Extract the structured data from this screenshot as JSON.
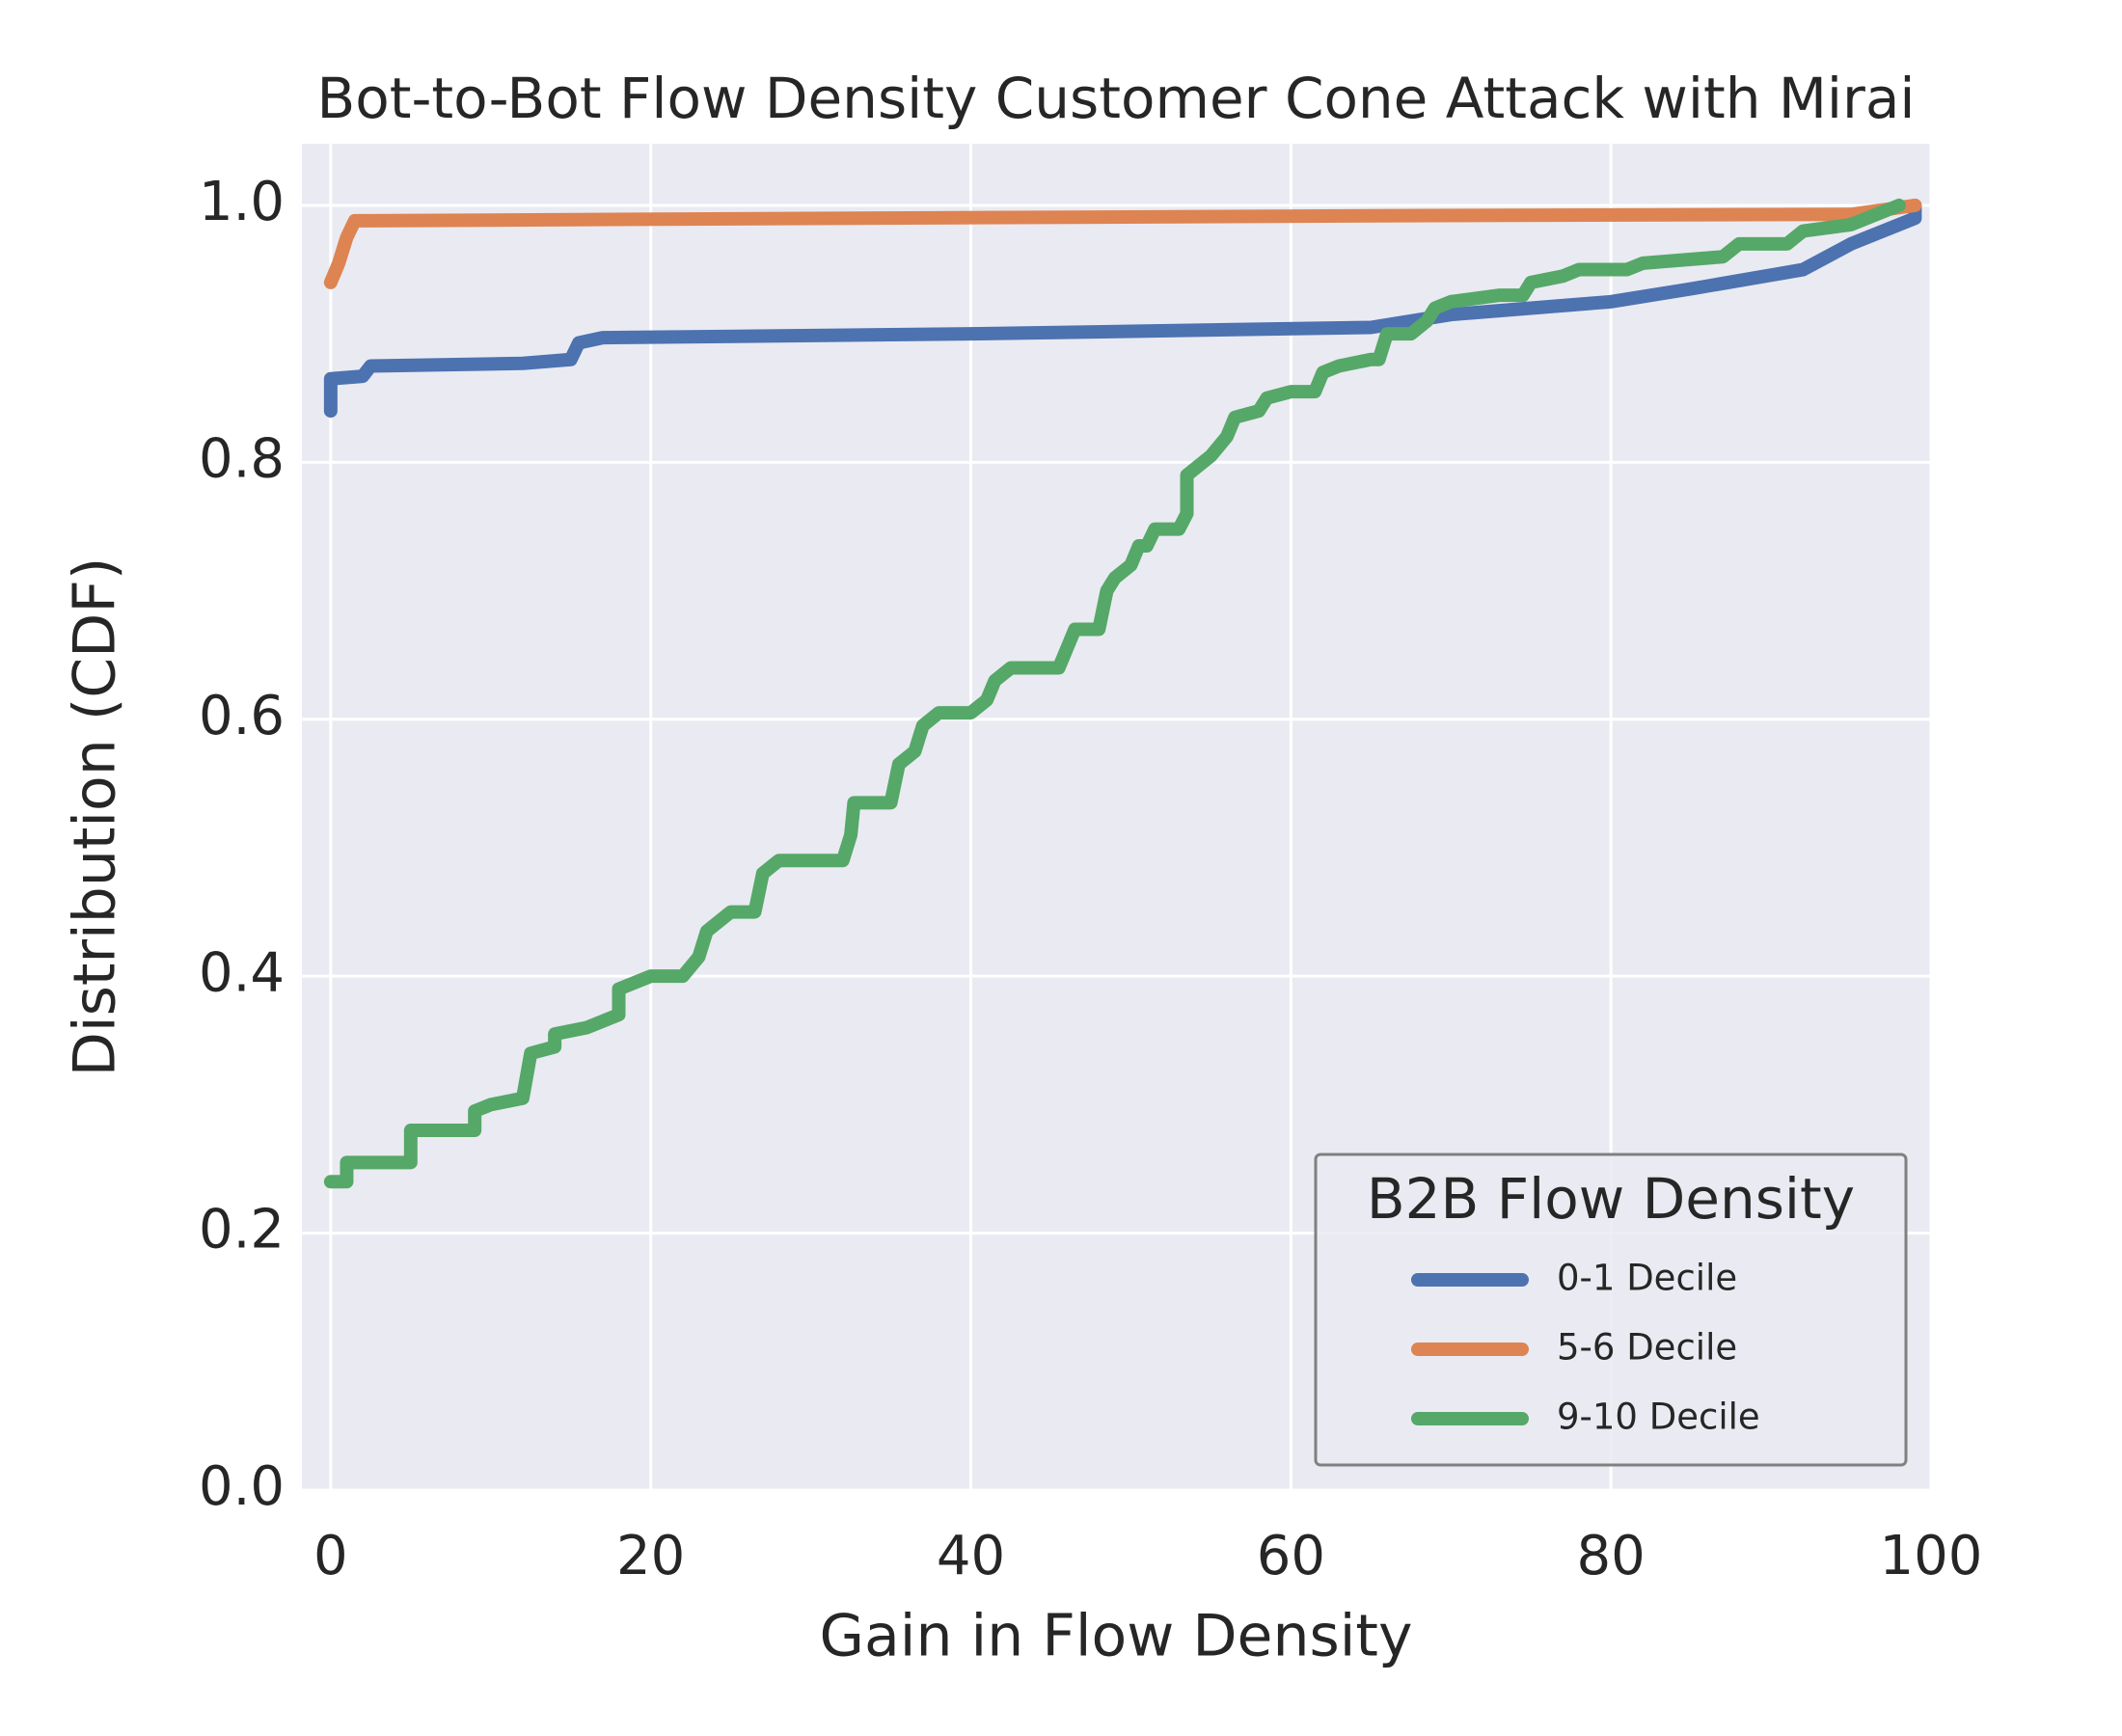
{
  "chart_data": {
    "type": "line",
    "title": "Bot-to-Bot Flow Density Customer Cone Attack with Mirai",
    "x_label": "Gain in Flow Density",
    "y_label": "Distribution (CDF)",
    "xlim": [
      -1.8,
      100
    ],
    "ylim": [
      0,
      1.048
    ],
    "xticks": [
      0,
      20,
      40,
      60,
      80,
      100
    ],
    "yticks": [
      {
        "value": 0,
        "label": "0.0"
      },
      {
        "value": 0.2,
        "label": "0.2"
      },
      {
        "value": 0.4,
        "label": "0.4"
      },
      {
        "value": 0.6,
        "label": "0.6"
      },
      {
        "value": 0.8,
        "label": "0.8"
      },
      {
        "value": 1,
        "label": "1.0"
      }
    ],
    "grid": true,
    "legend_title": "B2B Flow Density",
    "legend_loc": "lower right",
    "series": [
      {
        "name": "0-1 Decile",
        "color": "#4c72b0",
        "x": [
          0,
          0,
          2,
          2.5,
          12,
          15,
          15.5,
          17,
          40,
          65,
          70,
          80,
          85,
          92,
          95,
          99,
          99
        ],
        "values": [
          0.84,
          0.865,
          0.867,
          0.875,
          0.877,
          0.88,
          0.893,
          0.897,
          0.9,
          0.905,
          0.915,
          0.925,
          0.935,
          0.95,
          0.97,
          0.99,
          1.0
        ]
      },
      {
        "name": "5-6 Decile",
        "color": "#dd8452",
        "x": [
          0,
          0.5,
          1,
          1.5,
          33,
          67,
          95,
          99
        ],
        "values": [
          0.94,
          0.955,
          0.975,
          0.988,
          0.99,
          0.992,
          0.993,
          1.0
        ]
      },
      {
        "name": "9-10 Decile",
        "color": "#55a868",
        "x": [
          0,
          1,
          1,
          5,
          5,
          9,
          9,
          10,
          12,
          12.5,
          14,
          14,
          16,
          18,
          18,
          20,
          22,
          23,
          23.5,
          25,
          26.5,
          27,
          28,
          32,
          32.5,
          32.7,
          35,
          35.5,
          36.5,
          37,
          38,
          40,
          41,
          41.5,
          42.5,
          45.5,
          46,
          46.5,
          48,
          48.5,
          49,
          50,
          50.5,
          51,
          51.5,
          53,
          53.5,
          53.5,
          55,
          56,
          56.5,
          58,
          58.5,
          60,
          61.5,
          62,
          63,
          65,
          65.5,
          66,
          67.5,
          68.5,
          69,
          70,
          73,
          74.5,
          75,
          77,
          78,
          81,
          82,
          87,
          88,
          91,
          92,
          95,
          98
        ],
        "values": [
          0.24,
          0.24,
          0.255,
          0.255,
          0.28,
          0.28,
          0.295,
          0.3,
          0.305,
          0.34,
          0.345,
          0.355,
          0.36,
          0.37,
          0.39,
          0.4,
          0.4,
          0.415,
          0.435,
          0.45,
          0.45,
          0.48,
          0.49,
          0.49,
          0.51,
          0.535,
          0.535,
          0.565,
          0.575,
          0.595,
          0.605,
          0.605,
          0.615,
          0.63,
          0.64,
          0.64,
          0.655,
          0.67,
          0.67,
          0.7,
          0.71,
          0.72,
          0.735,
          0.735,
          0.748,
          0.748,
          0.76,
          0.79,
          0.805,
          0.82,
          0.835,
          0.84,
          0.85,
          0.855,
          0.855,
          0.87,
          0.875,
          0.88,
          0.88,
          0.9,
          0.9,
          0.91,
          0.92,
          0.925,
          0.93,
          0.93,
          0.94,
          0.945,
          0.95,
          0.95,
          0.955,
          0.96,
          0.97,
          0.97,
          0.98,
          0.985,
          1.0
        ]
      }
    ]
  }
}
